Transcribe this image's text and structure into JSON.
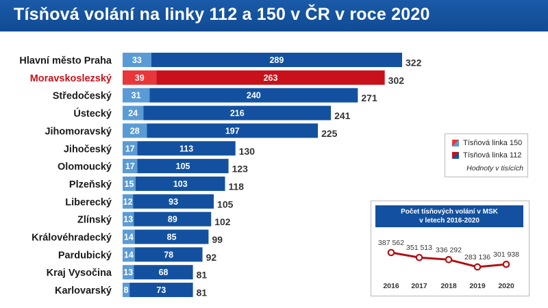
{
  "title": "Tísňová volání na linky 112 a 150 v ČR v roce 2020",
  "colors": {
    "header_bg": "#114b94",
    "line150": "#5b9bd5",
    "line112": "#1351a0",
    "highlight150": "#e8363b",
    "highlight112": "#c8111a",
    "msk_line": "#b01116",
    "total_label": "#333333"
  },
  "legend": {
    "line150_label": "Tísňová linka 150",
    "line112_label": "Tísňová linka 112",
    "note": "Hodnoty v tisících"
  },
  "chart_data": [
    {
      "type": "bar",
      "stacked": true,
      "orientation": "horizontal",
      "highlight": "Moravskoslezský",
      "categories": [
        "Hlavní město Praha",
        "Moravskoslezský",
        "Středočeský",
        "Ústecký",
        "Jihomoravský",
        "Jihočeský",
        "Olomoucký",
        "Plzeňský",
        "Liberecký",
        "Zlínský",
        "Královéhradecký",
        "Pardubický",
        "Kraj Vysočina",
        "Karlovarský"
      ],
      "series": [
        {
          "name": "Tísňová linka 150",
          "values": [
            33,
            39,
            31,
            24,
            28,
            17,
            17,
            15,
            12,
            13,
            14,
            14,
            13,
            8
          ]
        },
        {
          "name": "Tísňová linka 112",
          "values": [
            289,
            263,
            240,
            216,
            197,
            113,
            105,
            103,
            93,
            89,
            85,
            78,
            68,
            73
          ]
        }
      ],
      "totals": [
        322,
        302,
        271,
        241,
        225,
        130,
        123,
        118,
        105,
        102,
        99,
        92,
        81,
        81
      ]
    },
    {
      "type": "line",
      "title": "Počet tísňových volání v MSK\nv letech 2016-2020",
      "x": [
        "2016",
        "2017",
        "2018",
        "2019",
        "2020"
      ],
      "series": [
        {
          "values": [
            387562,
            351513,
            336292,
            283136,
            301938
          ]
        }
      ],
      "value_labels": [
        "387 562",
        "351 513",
        "336 292",
        "283 136",
        "301 938"
      ]
    }
  ]
}
